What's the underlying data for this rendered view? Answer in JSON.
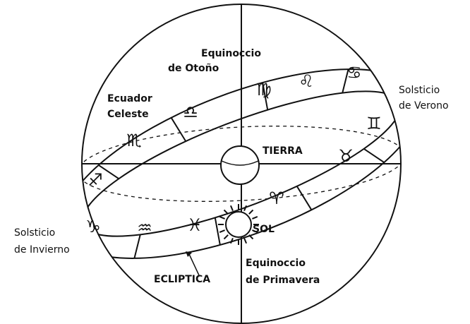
{
  "labels": {
    "equinox_autumn": [
      "Equinoccio",
      "de Otoño"
    ],
    "celestial_equator": [
      "Ecuador",
      "Celeste"
    ],
    "summer_solstice": [
      "Solsticio",
      "de Verono"
    ],
    "earth": "TIERRA",
    "winter_solstice": [
      "Solsticio",
      "de Invierno"
    ],
    "sun": "SOL",
    "ecliptic": "ECLIPTICA",
    "equinox_spring": [
      "Equinoccio",
      "de Primavera"
    ]
  },
  "zodiac": [
    "♑",
    "♒",
    "♓",
    "♈",
    "♉",
    "♊",
    "♋",
    "♌",
    "♍",
    "♎",
    "♏",
    "♐"
  ]
}
